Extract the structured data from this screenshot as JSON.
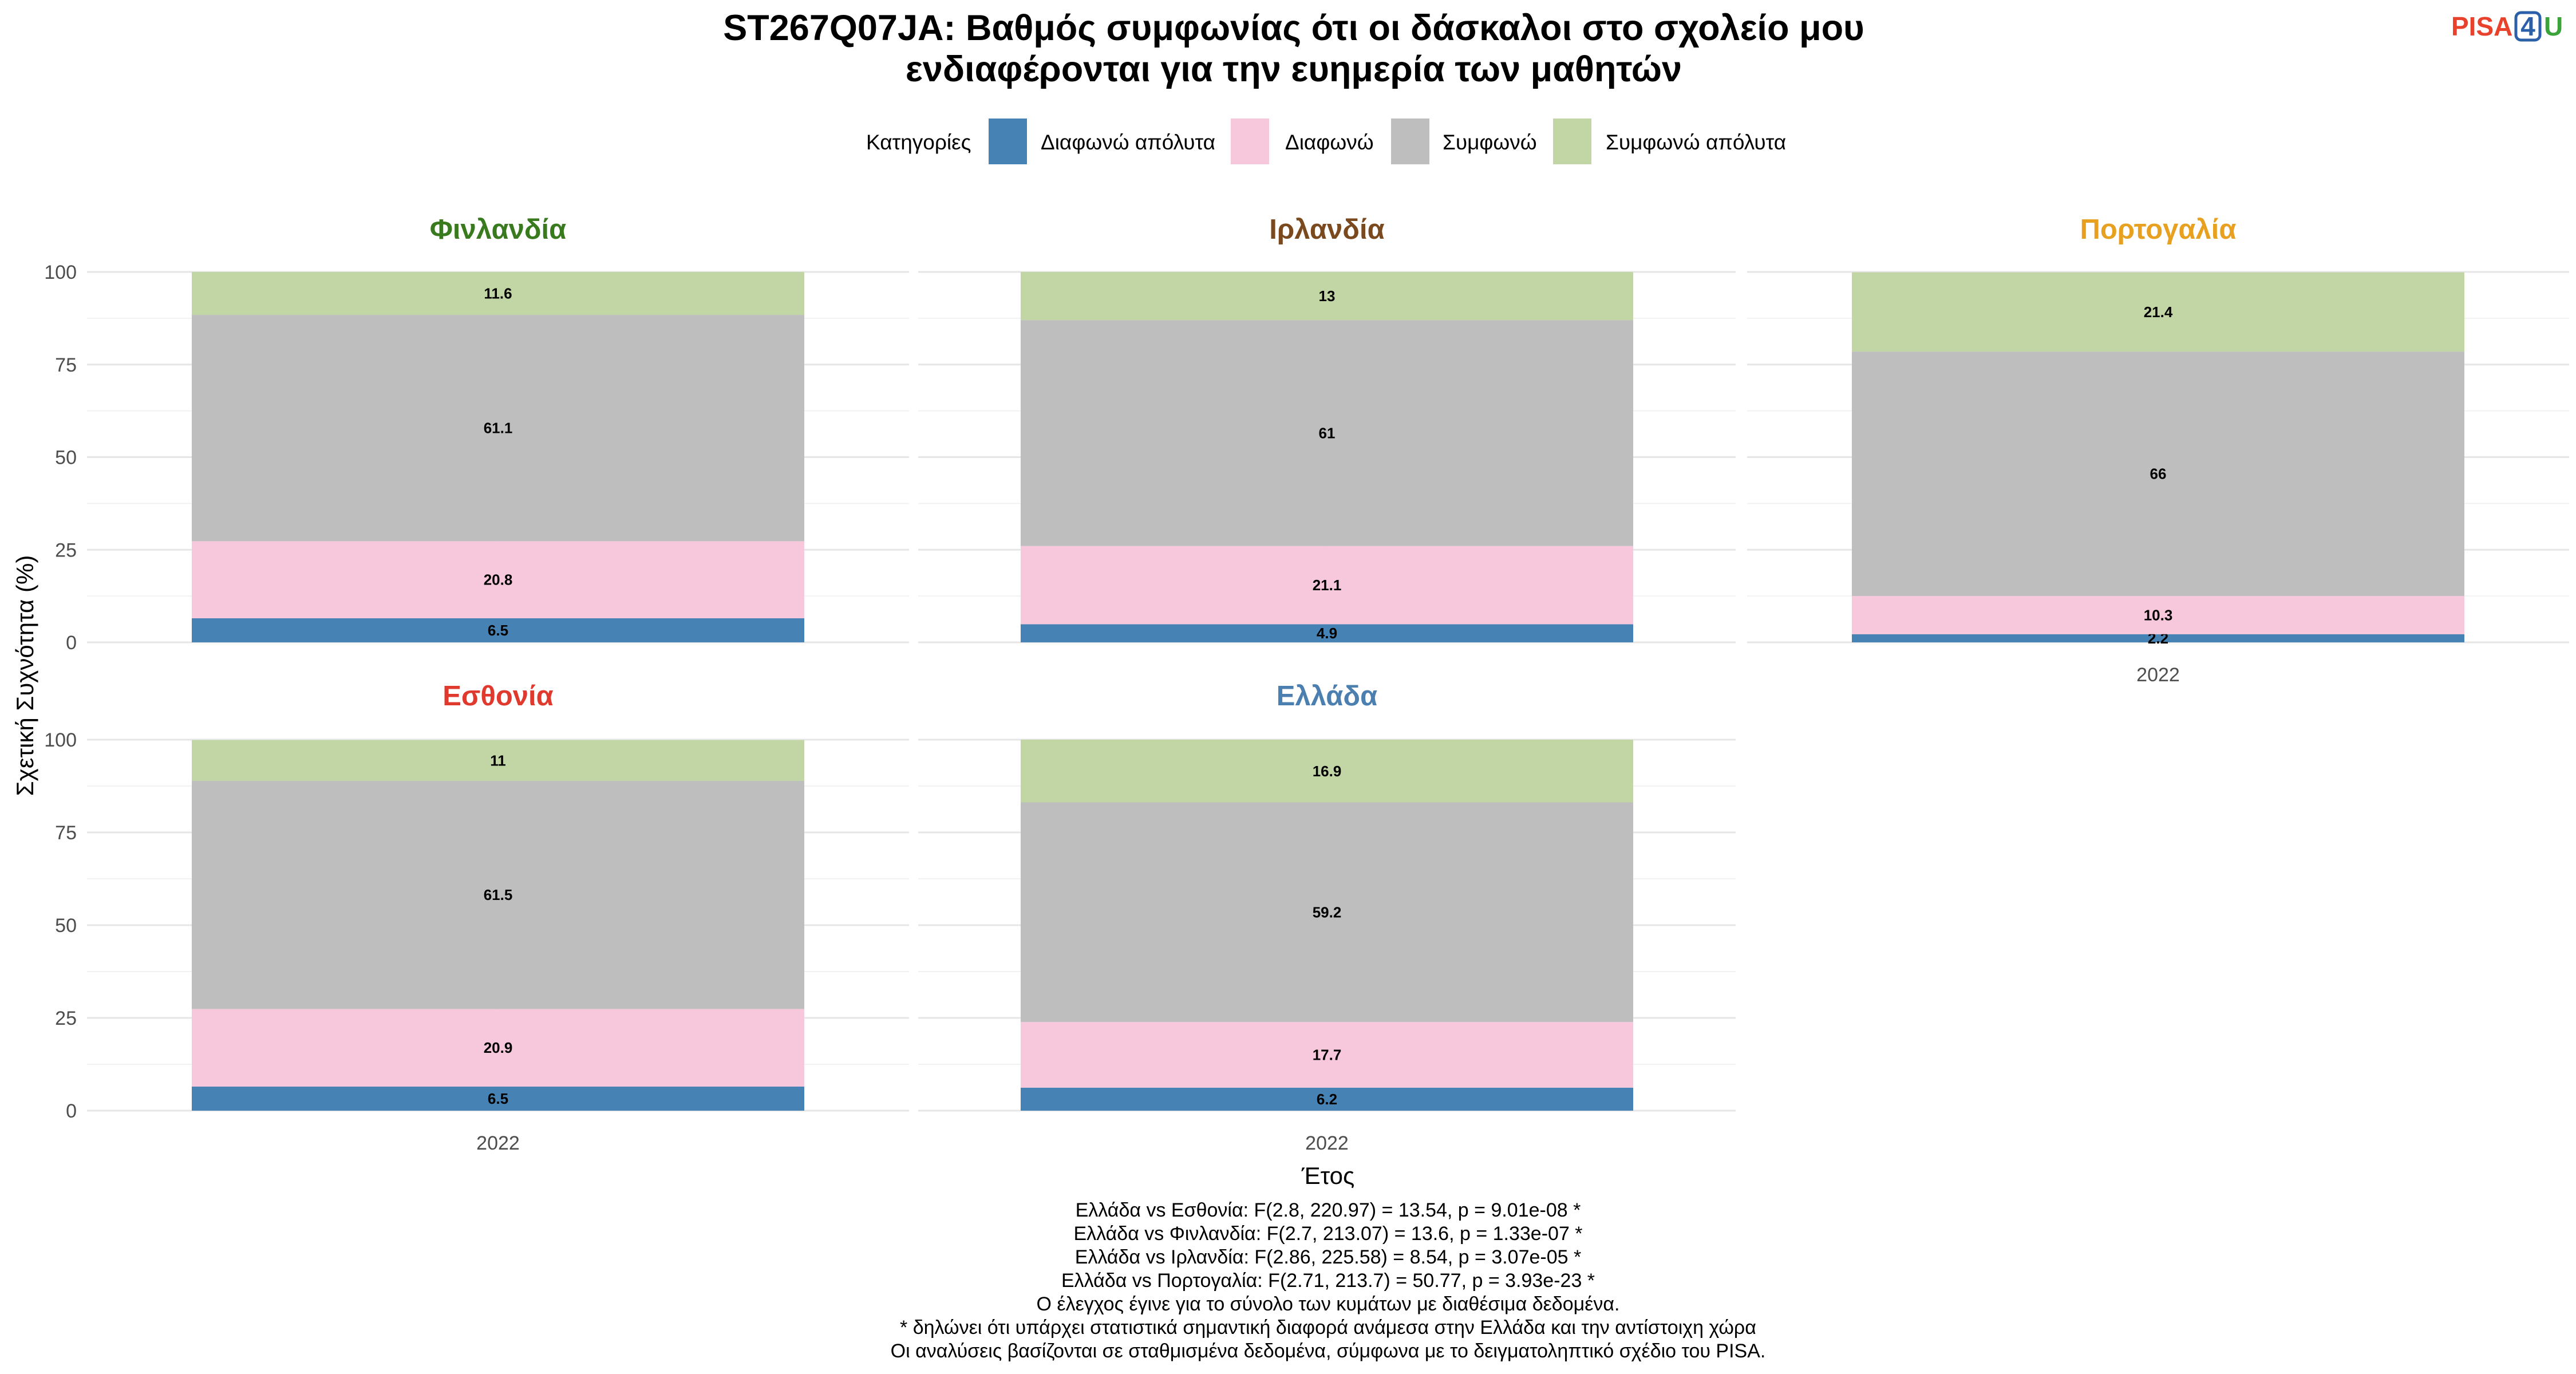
{
  "title_lines": [
    "ST267Q07JA: Βαθμός συμφωνίας ότι οι δάσκαλοι στο σχολείο μου",
    "ενδιαφέρονται για την ευημερία των μαθητών"
  ],
  "logo": {
    "text_left": "PISA",
    "text_box": "4",
    "text_right": "U",
    "colors": {
      "left": "#e8412c",
      "box": "#2b5fa8",
      "right": "#3aa33a"
    }
  },
  "legend": {
    "title": "Κατηγορίες",
    "position": "top-center",
    "items": [
      {
        "label": "Διαφωνώ απόλυτα",
        "color": "#4682b4"
      },
      {
        "label": "Διαφωνώ",
        "color": "#f7c7dc"
      },
      {
        "label": "Συμφωνώ",
        "color": "#bebebe"
      },
      {
        "label": "Συμφωνώ απόλυτα",
        "color": "#c2d6a5"
      }
    ]
  },
  "chart_data": {
    "type": "bar",
    "stacked": true,
    "xlabel": "Έτος",
    "ylabel": "Σχετική Συχνότητα (%)",
    "ylim": [
      0,
      100
    ],
    "yticks": [
      0,
      25,
      50,
      75,
      100
    ],
    "categories": [
      "2022"
    ],
    "grid": true,
    "legend_position": "top",
    "series_names": [
      "Διαφωνώ απόλυτα",
      "Διαφωνώ",
      "Συμφωνώ",
      "Συμφωνώ απόλυτα"
    ],
    "panels": [
      {
        "name": "Φινλανδία",
        "color": "#3a7a1e",
        "values": [
          6.5,
          20.8,
          61.1,
          11.6
        ]
      },
      {
        "name": "Ιρλανδία",
        "color": "#7a4a1e",
        "values": [
          4.9,
          21.1,
          61,
          13
        ]
      },
      {
        "name": "Πορτογαλία",
        "color": "#e8a020",
        "values": [
          2.2,
          10.3,
          66,
          21.4
        ]
      },
      {
        "name": "Εσθονία",
        "color": "#e03a2e",
        "values": [
          6.5,
          20.9,
          61.5,
          11
        ]
      },
      {
        "name": "Ελλάδα",
        "color": "#4a7fb0",
        "values": [
          6.2,
          17.7,
          59.2,
          16.9
        ]
      }
    ]
  },
  "caption_lines": [
    "Ελλάδα vs Εσθονία: F(2.8, 220.97) = 13.54, p = 9.01e-08 *",
    "Ελλάδα vs Φινλανδία: F(2.7, 213.07) = 13.6, p = 1.33e-07 *",
    "Ελλάδα vs Ιρλανδία: F(2.86, 225.58) = 8.54, p = 3.07e-05 *",
    "Ελλάδα vs Πορτογαλία: F(2.71, 213.7) = 50.77, p = 3.93e-23 *",
    "Ο έλεγχος έγινε για το σύνολο των κυμάτων με διαθέσιμα δεδομένα.",
    "* δηλώνει ότι υπάρχει στατιστικά σημαντική διαφορά ανάμεσα στην Ελλάδα και την αντίστοιχη χώρα",
    "Οι αναλύσεις βασίζονται σε σταθμισμένα δεδομένα, σύμφωνα με το δειγματοληπτικό σχέδιο του PISA."
  ]
}
